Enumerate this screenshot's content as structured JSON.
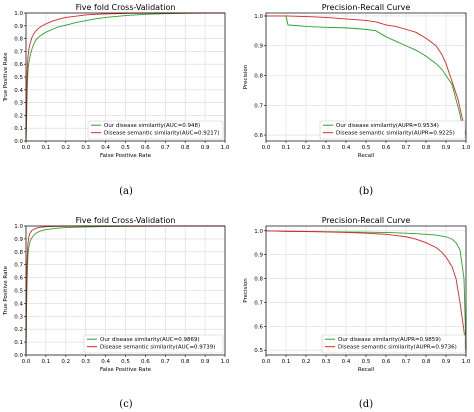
{
  "chart_data": [
    {
      "type": "line",
      "title": "Five fold Cross-Validation",
      "xlabel": "False Positive Rate",
      "ylabel": "True Positive Rate",
      "xlim": [
        0,
        1
      ],
      "ylim": [
        0,
        1
      ],
      "xticks": [
        "0.0",
        "0.1",
        "0.2",
        "0.3",
        "0.4",
        "0.5",
        "0.6",
        "0.7",
        "0.8",
        "0.9",
        "1.0"
      ],
      "yticks": [
        "0.0",
        "0.1",
        "0.2",
        "0.3",
        "0.4",
        "0.5",
        "0.6",
        "0.7",
        "0.8",
        "0.9",
        "1.0"
      ],
      "grid": true,
      "legend_position": "bottom-right",
      "caption": "(a)",
      "series": [
        {
          "name": "Our disease similarity(AUC=0.948)",
          "color": "#2ca02c",
          "x": [
            0,
            0.003,
            0.006,
            0.01,
            0.015,
            0.02,
            0.03,
            0.04,
            0.05,
            0.07,
            0.1,
            0.13,
            0.16,
            0.2,
            0.25,
            0.3,
            0.35,
            0.4,
            0.5,
            0.6,
            0.7,
            0.8,
            0.9,
            1.0
          ],
          "y": [
            0,
            0.15,
            0.4,
            0.55,
            0.62,
            0.66,
            0.72,
            0.76,
            0.79,
            0.82,
            0.85,
            0.87,
            0.89,
            0.905,
            0.925,
            0.94,
            0.955,
            0.965,
            0.98,
            0.99,
            0.995,
            0.998,
            1.0,
            1.0
          ]
        },
        {
          "name": "Disease semantic similarity(AUC=0.9217)",
          "color": "#d62728",
          "x": [
            0,
            0.003,
            0.006,
            0.01,
            0.015,
            0.02,
            0.03,
            0.04,
            0.05,
            0.07,
            0.1,
            0.13,
            0.16,
            0.2,
            0.25,
            0.3,
            0.35,
            0.4,
            0.5,
            0.6,
            0.7,
            0.8,
            0.9,
            1.0
          ],
          "y": [
            0,
            0.3,
            0.55,
            0.66,
            0.72,
            0.76,
            0.81,
            0.84,
            0.86,
            0.89,
            0.915,
            0.935,
            0.95,
            0.965,
            0.975,
            0.985,
            0.99,
            0.993,
            0.997,
            0.999,
            1.0,
            1.0,
            1.0,
            1.0
          ]
        }
      ]
    },
    {
      "type": "line",
      "title": "Precision-Recall Curve",
      "xlabel": "Recall",
      "ylabel": "Precision",
      "xlim": [
        0,
        1
      ],
      "ylim": [
        0.58,
        1.01
      ],
      "xticks": [
        "0.0",
        "0.1",
        "0.2",
        "0.3",
        "0.4",
        "0.5",
        "0.6",
        "0.7",
        "0.8",
        "0.9",
        "1.0"
      ],
      "yticks": [
        "0.6",
        "0.7",
        "0.8",
        "0.9",
        "1.0"
      ],
      "grid": true,
      "legend_position": "bottom-right",
      "caption": "(b)",
      "series": [
        {
          "name": "Our disease similarity(AUPR=0.9534)",
          "color": "#2ca02c",
          "x": [
            0,
            0.05,
            0.1,
            0.11,
            0.15,
            0.2,
            0.3,
            0.4,
            0.5,
            0.55,
            0.6,
            0.65,
            0.7,
            0.75,
            0.8,
            0.85,
            0.88,
            0.9,
            0.93,
            0.95,
            0.97,
            0.98,
            1.0
          ],
          "y": [
            1.0,
            1.0,
            1.0,
            0.97,
            0.968,
            0.965,
            0.962,
            0.96,
            0.955,
            0.95,
            0.93,
            0.915,
            0.9,
            0.885,
            0.865,
            0.84,
            0.82,
            0.8,
            0.77,
            0.72,
            0.67,
            0.63,
            0.6
          ]
        },
        {
          "name": "Disease semantic similarity(AUPR=0.9225)",
          "color": "#d62728",
          "x": [
            0,
            0.1,
            0.2,
            0.3,
            0.4,
            0.5,
            0.55,
            0.6,
            0.65,
            0.7,
            0.75,
            0.8,
            0.85,
            0.88,
            0.9,
            0.92,
            0.94,
            0.96,
            0.98,
            1.0
          ],
          "y": [
            1.0,
            1.0,
            0.998,
            0.995,
            0.99,
            0.985,
            0.98,
            0.97,
            0.965,
            0.955,
            0.945,
            0.925,
            0.9,
            0.87,
            0.84,
            0.8,
            0.76,
            0.72,
            0.66,
            0.6
          ]
        }
      ]
    },
    {
      "type": "line",
      "title": "Five fold Cross-Validation",
      "xlabel": "False Positive Rate",
      "ylabel": "True Positive Rate",
      "xlim": [
        0,
        1
      ],
      "ylim": [
        0,
        1
      ],
      "xticks": [
        "0.0",
        "0.1",
        "0.2",
        "0.3",
        "0.4",
        "0.5",
        "0.6",
        "0.7",
        "0.8",
        "0.9",
        "1.0"
      ],
      "yticks": [
        "0.0",
        "0.1",
        "0.2",
        "0.3",
        "0.4",
        "0.5",
        "0.6",
        "0.7",
        "0.8",
        "0.9",
        "1.0"
      ],
      "grid": true,
      "legend_position": "bottom-right",
      "caption": "(c)",
      "series": [
        {
          "name": "Our disease similarity(AUC=0.9869)",
          "color": "#2ca02c",
          "x": [
            0,
            0.002,
            0.005,
            0.008,
            0.01,
            0.015,
            0.02,
            0.03,
            0.04,
            0.05,
            0.07,
            0.1,
            0.15,
            0.2,
            0.3,
            0.4,
            0.5,
            0.7,
            1.0
          ],
          "y": [
            0,
            0.3,
            0.55,
            0.7,
            0.78,
            0.84,
            0.88,
            0.91,
            0.93,
            0.945,
            0.96,
            0.972,
            0.982,
            0.988,
            0.993,
            0.996,
            0.998,
            1.0,
            1.0
          ]
        },
        {
          "name": "Disease semantic similarity(AUC=0.9739)",
          "color": "#d62728",
          "x": [
            0,
            0.002,
            0.005,
            0.008,
            0.01,
            0.015,
            0.02,
            0.03,
            0.04,
            0.05,
            0.07,
            0.1,
            0.15,
            0.2,
            0.3,
            0.4,
            0.5,
            0.7,
            1.0
          ],
          "y": [
            0,
            0.45,
            0.7,
            0.82,
            0.87,
            0.92,
            0.945,
            0.965,
            0.975,
            0.982,
            0.99,
            0.995,
            0.998,
            0.999,
            1.0,
            1.0,
            1.0,
            1.0,
            1.0
          ]
        }
      ]
    },
    {
      "type": "line",
      "title": "Precision-Recall Curve",
      "xlabel": "Recall",
      "ylabel": "Precision",
      "xlim": [
        0,
        1
      ],
      "ylim": [
        0.48,
        1.02
      ],
      "xticks": [
        "0.0",
        "0.1",
        "0.2",
        "0.3",
        "0.4",
        "0.5",
        "0.6",
        "0.7",
        "0.8",
        "0.9",
        "1.0"
      ],
      "yticks": [
        "0.5",
        "0.6",
        "0.7",
        "0.8",
        "0.9",
        "1.0"
      ],
      "grid": true,
      "legend_position": "bottom-right",
      "caption": "(d)",
      "series": [
        {
          "name": "Our disease similarity(AUPR=0.9859)",
          "color": "#2ca02c",
          "x": [
            0,
            0.1,
            0.2,
            0.3,
            0.4,
            0.5,
            0.6,
            0.7,
            0.75,
            0.8,
            0.85,
            0.9,
            0.93,
            0.95,
            0.97,
            0.99,
            1.0
          ],
          "y": [
            1.0,
            0.998,
            0.997,
            0.996,
            0.995,
            0.994,
            0.993,
            0.99,
            0.988,
            0.985,
            0.982,
            0.975,
            0.965,
            0.95,
            0.92,
            0.8,
            0.5
          ]
        },
        {
          "name": "Disease semantic similarity(AUPR=0.9736)",
          "color": "#d62728",
          "x": [
            0,
            0.1,
            0.2,
            0.3,
            0.4,
            0.5,
            0.6,
            0.65,
            0.7,
            0.75,
            0.8,
            0.85,
            0.88,
            0.9,
            0.93,
            0.95,
            0.97,
            0.99,
            1.0
          ],
          "y": [
            1.0,
            0.998,
            0.997,
            0.995,
            0.993,
            0.99,
            0.985,
            0.98,
            0.975,
            0.965,
            0.95,
            0.93,
            0.91,
            0.89,
            0.85,
            0.8,
            0.7,
            0.58,
            0.5
          ]
        }
      ]
    }
  ]
}
